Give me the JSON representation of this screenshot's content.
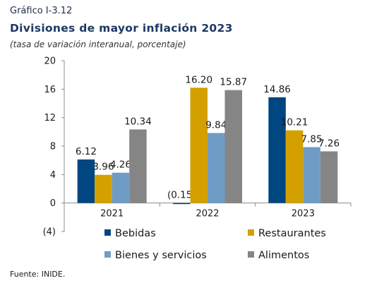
{
  "header": {
    "label": "Gráfico I-3.12",
    "title": "Divisiones de mayor inflación 2023",
    "subtitle": "(tasa de variación interanual, porcentaje)"
  },
  "source": "Fuente: INIDE.",
  "colors": {
    "Bebidas": "#004680",
    "Restaurantes": "#d4a000",
    "Bienes y servicios": "#6f9cc4",
    "Alimentos": "#858585"
  },
  "chart_data": {
    "type": "bar",
    "categories": [
      "2021",
      "2022",
      "2023"
    ],
    "series": [
      {
        "name": "Bebidas",
        "values": [
          6.12,
          -0.15,
          14.86
        ],
        "labels": [
          "6.12",
          "(0.15)",
          "14.86"
        ]
      },
      {
        "name": "Restaurantes",
        "values": [
          3.96,
          16.2,
          10.21
        ],
        "labels": [
          "3.96",
          "16.20",
          "10.21"
        ]
      },
      {
        "name": "Bienes y servicios",
        "values": [
          4.26,
          9.84,
          7.85
        ],
        "labels": [
          "4.26",
          "9.84",
          "7.85"
        ]
      },
      {
        "name": "Alimentos",
        "values": [
          10.34,
          15.87,
          7.26
        ],
        "labels": [
          "10.34",
          "15.87",
          "7.26"
        ]
      }
    ],
    "yticks": [
      20,
      16,
      12,
      8,
      4,
      0,
      -4
    ],
    "ytick_labels": [
      "20",
      "16",
      "12",
      "8",
      "4",
      "0",
      "(4)"
    ],
    "ylim": [
      -4,
      20
    ],
    "grid": false,
    "legend_position": "bottom"
  }
}
